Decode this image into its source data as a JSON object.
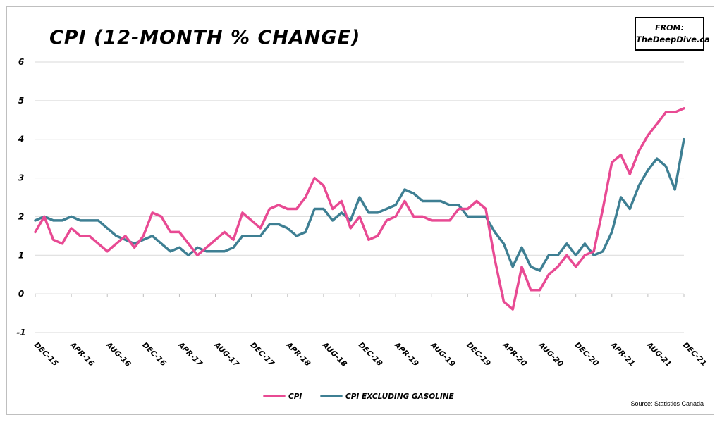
{
  "header": {
    "title": "CPI (12-MONTH % CHANGE)",
    "from_label": "FROM:",
    "from_site": "TheDeepDive.ca"
  },
  "footer": {
    "source": "Source: Statistics Canada"
  },
  "colors": {
    "cpi": "#e84a93",
    "cpi_ex_gas": "#3e7f93",
    "grid": "#d9d9d9"
  },
  "chart_data": {
    "type": "line",
    "title": "CPI (12-MONTH % CHANGE)",
    "ylim": [
      -1,
      6
    ],
    "yticks": [
      "-1",
      "0",
      "1",
      "2",
      "3",
      "4",
      "5",
      "6"
    ],
    "xtick_labels": [
      "DEC-15",
      "APR-16",
      "AUG-16",
      "DEC-16",
      "APR-17",
      "AUG-17",
      "DEC-17",
      "APR-18",
      "AUG-18",
      "DEC-18",
      "APR-19",
      "AUG-19",
      "DEC-19",
      "APR-20",
      "AUG-20",
      "DEC-20",
      "APR-21",
      "AUG-21",
      "DEC-21"
    ],
    "x_start": "DEC-15",
    "x_end": "DEC-21",
    "grid": "horizontal",
    "legend_position": "bottom",
    "series": [
      {
        "name": "CPI",
        "values": [
          1.6,
          2.0,
          1.4,
          1.3,
          1.7,
          1.5,
          1.5,
          1.3,
          1.1,
          1.3,
          1.5,
          1.2,
          1.5,
          2.1,
          2.0,
          1.6,
          1.6,
          1.3,
          1.0,
          1.2,
          1.4,
          1.6,
          1.4,
          2.1,
          1.9,
          1.7,
          2.2,
          2.3,
          2.2,
          2.2,
          2.5,
          3.0,
          2.8,
          2.2,
          2.4,
          1.7,
          2.0,
          1.4,
          1.5,
          1.9,
          2.0,
          2.4,
          2.0,
          2.0,
          1.9,
          1.9,
          1.9,
          2.2,
          2.2,
          2.4,
          2.2,
          0.9,
          -0.2,
          -0.4,
          0.7,
          0.1,
          0.1,
          0.5,
          0.7,
          1.0,
          0.7,
          1.0,
          1.1,
          2.2,
          3.4,
          3.6,
          3.1,
          3.7,
          4.1,
          4.4,
          4.7,
          4.7,
          4.8
        ]
      },
      {
        "name": "CPI EXCLUDING GASOLINE",
        "values": [
          1.9,
          2.0,
          1.9,
          1.9,
          2.0,
          1.9,
          1.9,
          1.9,
          1.7,
          1.5,
          1.4,
          1.3,
          1.4,
          1.5,
          1.3,
          1.1,
          1.2,
          1.0,
          1.2,
          1.1,
          1.1,
          1.1,
          1.2,
          1.5,
          1.5,
          1.5,
          1.8,
          1.8,
          1.7,
          1.5,
          1.6,
          2.2,
          2.2,
          1.9,
          2.1,
          1.9,
          2.5,
          2.1,
          2.1,
          2.2,
          2.3,
          2.7,
          2.6,
          2.4,
          2.4,
          2.4,
          2.3,
          2.3,
          2.0,
          2.0,
          2.0,
          1.6,
          1.3,
          0.7,
          1.2,
          0.7,
          0.6,
          1.0,
          1.0,
          1.3,
          1.0,
          1.3,
          1.0,
          1.1,
          1.6,
          2.5,
          2.2,
          2.8,
          3.2,
          3.5,
          3.3,
          2.7,
          4.0
        ]
      }
    ]
  }
}
